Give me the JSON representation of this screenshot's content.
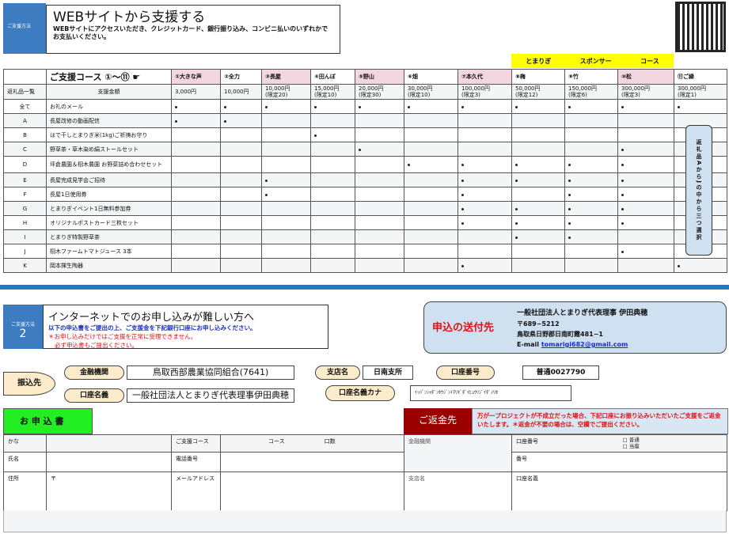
{
  "method1": {
    "label": "ご支援方法",
    "title": "WEBサイトから支援する",
    "desc": "WEBサイトにアクセスいただき、クレジットカード、銀行振り込み、コンビニ払いのいずれかでお支払いください。"
  },
  "sponsor_band": [
    "とまりぎ",
    "スポンサー",
    "コース"
  ],
  "table": {
    "header_label": "ご支援コース ①〜⑪ ☛",
    "returns_label": "返礼品一覧",
    "amount_label": "支援金額",
    "courses": [
      {
        "name": "①大きな声",
        "price": "3,000円",
        "limit": "",
        "pink": true
      },
      {
        "name": "②全力",
        "price": "10,000円",
        "limit": "",
        "pink": false
      },
      {
        "name": "③長屋",
        "price": "10,000円",
        "limit": "(限定20)",
        "pink": true
      },
      {
        "name": "④田んぼ",
        "price": "15,000円",
        "limit": "(限定10)",
        "pink": false
      },
      {
        "name": "⑤野山",
        "price": "20,000円",
        "limit": "(限定30)",
        "pink": true
      },
      {
        "name": "⑥畑",
        "price": "30,000円",
        "limit": "(限定10)",
        "pink": false
      },
      {
        "name": "⑦本久代",
        "price": "100,000円",
        "limit": "(限定3)",
        "pink": true
      },
      {
        "name": "⑧梅",
        "price": "50,000円",
        "limit": "(限定12)",
        "pink": false
      },
      {
        "name": "⑨竹",
        "price": "150,000円",
        "limit": "(限定6)",
        "pink": false
      },
      {
        "name": "⑩松",
        "price": "300,000円",
        "limit": "(限定3)",
        "pink": true
      },
      {
        "name": "⑪ご縁",
        "price": "300,000円",
        "limit": "(限定1)",
        "pink": false
      }
    ],
    "rows": [
      {
        "code": "全て",
        "item": "お礼のメール",
        "courses": [
          1,
          2,
          3,
          4,
          5,
          6,
          7,
          8,
          9,
          10,
          11
        ]
      },
      {
        "code": "A",
        "item": "長屋改修の動画配信",
        "courses": [
          1,
          2
        ]
      },
      {
        "code": "B",
        "item": "はで干しとまりぎ米(1kg)ご祈祷お守り",
        "courses": [
          4
        ]
      },
      {
        "code": "C",
        "item": "野草茶・草木染め絹ストールセット",
        "courses": [
          5,
          10
        ]
      },
      {
        "code": "D",
        "item": "坪倉農園＆栩木農園 お野菜詰め合わせセット",
        "courses": [
          6,
          7,
          8,
          9,
          10
        ]
      },
      {
        "code": "E",
        "item": "長屋完成見学会ご招待",
        "courses": [
          3,
          7,
          8,
          9,
          10
        ]
      },
      {
        "code": "F",
        "item": "長屋1日使用券",
        "courses": [
          3,
          7,
          9,
          10
        ]
      },
      {
        "code": "G",
        "item": "とまりぎイベント1日無料参加券",
        "courses": [
          7,
          8,
          9,
          10
        ]
      },
      {
        "code": "H",
        "item": "オリジナルポストカード三枚セット",
        "courses": [
          7,
          8,
          9,
          10
        ]
      },
      {
        "code": "I",
        "item": "とまりぎ特製野草茶",
        "courses": [
          8,
          9
        ]
      },
      {
        "code": "J",
        "item": "栩木ファームトマトジュース 3本",
        "courses": [
          10
        ]
      },
      {
        "code": "K",
        "item": "岡本揮生陶器",
        "courses": [
          7,
          11
        ]
      }
    ],
    "note": "返礼品AからJの中から三つ選択"
  },
  "method2": {
    "label": "ご支援方法",
    "num": "2",
    "title": "インターネットでのお申し込みが難しい方へ",
    "line1": "以下の申込書をご提出の上、ご支援金を下記銀行口座にお申し込みください。",
    "line2": "＊お申し込みだけではご支援を正常に受理できません。",
    "line3": "必ず申込書もご提出ください。"
  },
  "send": {
    "label": "申込の送付先",
    "org": "一般社団法人とまりぎ代表理事 伊田典穂",
    "zip": "〒689−5212",
    "address": "鳥取県日野郡日南町霞481−1",
    "email_label": "E-mail",
    "email": "tomarigi682@gmail.com"
  },
  "bank": {
    "label": "振込先",
    "inst_label": "金融機関",
    "inst": "鳥取西部農業協同組合(7641)",
    "branch_label": "支店名",
    "branch": "日南支所",
    "acct_label": "口座番号",
    "acct": "普通0027790",
    "name_label": "口座名義",
    "name": "一般社団法人とまりぎ代表理事伊田典穂",
    "kana_label": "口座名義カナ",
    "kana": "ｲｯﾊﾟﾝｼｬﾀﾞﾝﾎｳｼﾞﾝﾄﾏﾘｷﾞﾀﾞｲﾋｮｳﾘｼﾞｲﾀﾞﾉﾘﾎ"
  },
  "form": {
    "title": "お 申 込 書",
    "refund_title": "ご返金先",
    "refund_note": "万が一プロジェクトが不成立だった場合、下記口座にお振り込みいただいたご支援をご返金いたします。＊返金が不要の場合は、空欄でご提出ください。",
    "kana": "かな",
    "name": "氏名",
    "address": "住所",
    "zip_mark": "〒",
    "course": "ご支援コース",
    "course_col": "コース",
    "units": "口数",
    "phone": "電話番号",
    "email": "メールアドレス",
    "bank": "金融機関",
    "branch": "支店名",
    "acct_no": "口座番号",
    "futsu": "普通",
    "toza": "当座",
    "number": "番号",
    "acct_name": "口座名義"
  }
}
